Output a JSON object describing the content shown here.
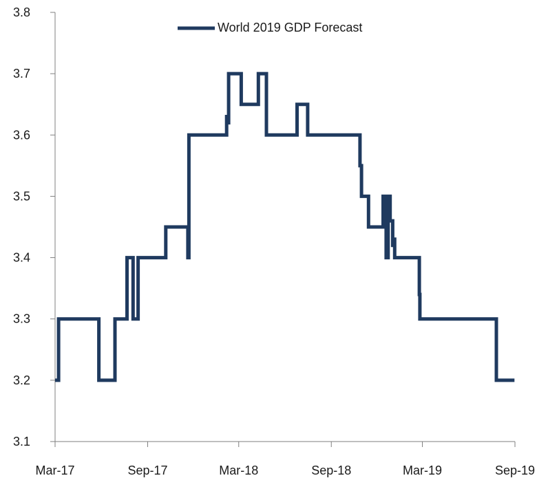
{
  "chart_data": {
    "type": "line",
    "title": "",
    "xlabel": "",
    "ylabel": "",
    "ylim": [
      3.1,
      3.8
    ],
    "yticks": [
      "3.1",
      "3.2",
      "3.3",
      "3.4",
      "3.5",
      "3.6",
      "3.7",
      "3.8"
    ],
    "xlim": [
      "2017-03-01",
      "2019-09-01"
    ],
    "xticks": [
      "Mar-17",
      "Sep-17",
      "Mar-18",
      "Sep-18",
      "Mar-19",
      "Sep-19"
    ],
    "xtick_dates": [
      "2017-03-01",
      "2017-09-01",
      "2018-03-01",
      "2018-09-01",
      "2019-03-01",
      "2019-09-01"
    ],
    "grid": false,
    "legend_position": "top-center",
    "series": [
      {
        "name": "World 2019 GDP Forecast",
        "color": "#1f3a5f",
        "step": "post",
        "x": [
          "2017-03-01",
          "2017-03-08",
          "2017-05-27",
          "2017-06-28",
          "2017-07-22",
          "2017-08-03",
          "2017-08-13",
          "2017-08-23",
          "2017-10-07",
          "2017-11-20",
          "2017-11-22",
          "2017-11-23",
          "2017-12-23",
          "2018-02-05",
          "2018-02-07",
          "2018-02-09",
          "2018-03-06",
          "2018-04-09",
          "2018-04-25",
          "2018-06-25",
          "2018-07-16",
          "2018-08-06",
          "2018-10-28",
          "2018-10-31",
          "2018-11-14",
          "2018-12-13",
          "2018-12-16",
          "2018-12-18",
          "2018-12-19",
          "2018-12-23",
          "2018-12-27",
          "2019-01-01",
          "2019-01-04",
          "2019-01-05",
          "2019-01-13",
          "2019-01-20",
          "2019-02-23",
          "2019-02-24",
          "2019-02-26",
          "2019-07-26",
          "2019-08-31"
        ],
        "values": [
          3.2,
          3.3,
          3.2,
          3.3,
          3.4,
          3.3,
          3.4,
          3.4,
          3.45,
          3.4,
          3.6,
          3.6,
          3.6,
          3.63,
          3.62,
          3.7,
          3.65,
          3.7,
          3.6,
          3.65,
          3.6,
          3.6,
          3.55,
          3.5,
          3.45,
          3.5,
          3.45,
          3.5,
          3.4,
          3.5,
          3.46,
          3.42,
          3.43,
          3.4,
          3.4,
          3.4,
          3.34,
          3.3,
          3.3,
          3.2,
          3.2
        ]
      }
    ]
  }
}
